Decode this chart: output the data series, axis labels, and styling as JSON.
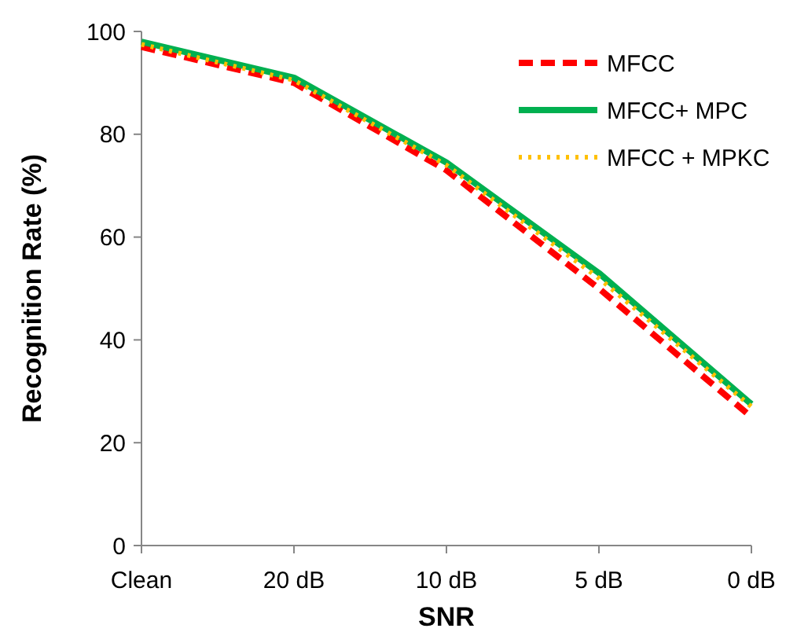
{
  "chart_data": {
    "type": "line",
    "xlabel": "SNR",
    "ylabel": "Recognition Rate (%)",
    "categories": [
      "Clean",
      "20 dB",
      "10 dB",
      "5 dB",
      "0 dB"
    ],
    "ylim": [
      0,
      100
    ],
    "yticks": [
      0,
      20,
      40,
      60,
      80,
      100
    ],
    "grid": false,
    "legend": "top right",
    "marker": "none",
    "series": [
      {
        "name": "MFCC",
        "color": "#ff0000",
        "line_style": "dashed",
        "values": [
          97,
          90,
          73,
          50,
          25
        ]
      },
      {
        "name": "MFCC+ MPC",
        "color": "#00b050",
        "line_style": "solid",
        "values": [
          98,
          91,
          74.5,
          53,
          27.5
        ]
      },
      {
        "name": "MFCC + MPKC",
        "color": "#ffc000",
        "line_style": "dotted",
        "values": [
          97.5,
          90.5,
          74,
          52,
          27
        ]
      }
    ]
  }
}
